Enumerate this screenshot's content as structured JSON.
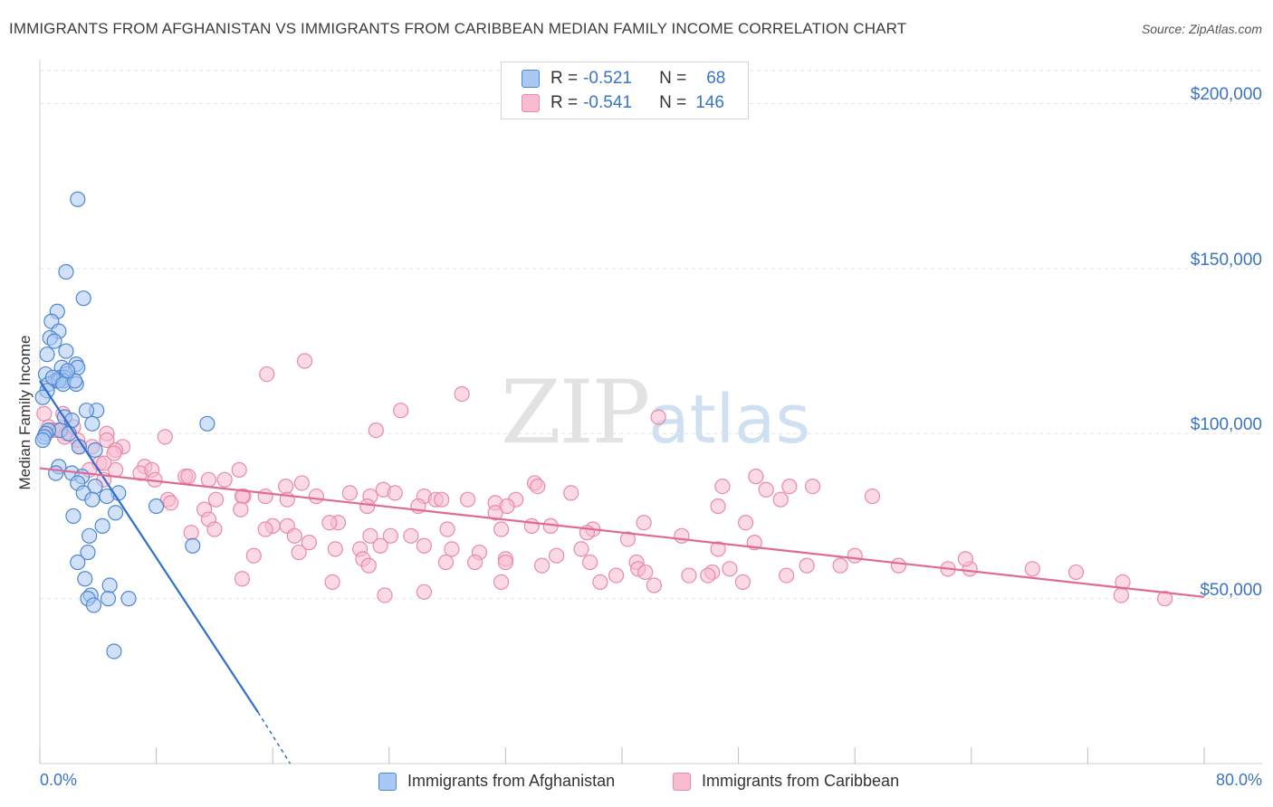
{
  "chart_data": {
    "type": "scatter",
    "title": "IMMIGRANTS FROM AFGHANISTAN VS IMMIGRANTS FROM CARIBBEAN MEDIAN FAMILY INCOME CORRELATION CHART",
    "source": "Source: ZipAtlas.com",
    "ylabel": "Median Family Income",
    "xlabel": "",
    "xlim": [
      0,
      80
    ],
    "ylim": [
      0,
      210000
    ],
    "x_tick_labels": {
      "left": "0.0%",
      "right": "80.0%"
    },
    "y_ticks": [
      {
        "value": 50000,
        "label": "$50,000"
      },
      {
        "value": 100000,
        "label": "$100,000"
      },
      {
        "value": 150000,
        "label": "$150,000"
      },
      {
        "value": 200000,
        "label": "$200,000"
      }
    ],
    "grid": true,
    "watermark": {
      "zip": "ZIP",
      "atlas": "atlas"
    },
    "colors": {
      "afghanistan_fill": "#aac9f2",
      "afghanistan_stroke": "#4f86d1",
      "afghanistan_line": "#3070cc",
      "caribbean_fill": "#f7bcd0",
      "caribbean_stroke": "#e88aa8",
      "caribbean_line": "#e06a92",
      "tick_text": "#3b74c4"
    },
    "stats": [
      {
        "r_label": "R = ",
        "r_value": "-0.521",
        "n_label": "N = ",
        "n_value": "68"
      },
      {
        "r_label": "R = ",
        "r_value": "-0.541",
        "n_label": "N = ",
        "n_value": "146"
      }
    ],
    "series": [
      {
        "name": "Immigrants from Afghanistan",
        "trend": {
          "x0": 0.0,
          "y0": 116000,
          "x1": 15.0,
          "y1": 15500,
          "dash_to_x": 17.2,
          "dash_to_y": 0
        },
        "points": [
          [
            2.6,
            171000
          ],
          [
            1.8,
            149000
          ],
          [
            3.0,
            141000
          ],
          [
            1.2,
            137000
          ],
          [
            0.8,
            134000
          ],
          [
            1.3,
            131000
          ],
          [
            0.7,
            129000
          ],
          [
            1.0,
            128000
          ],
          [
            0.5,
            124000
          ],
          [
            1.8,
            125000
          ],
          [
            2.5,
            121000
          ],
          [
            1.5,
            120000
          ],
          [
            1.8,
            118000
          ],
          [
            0.4,
            118000
          ],
          [
            2.6,
            120000
          ],
          [
            1.4,
            117000
          ],
          [
            1.7,
            117000
          ],
          [
            1.1,
            116000
          ],
          [
            0.6,
            115000
          ],
          [
            2.5,
            115000
          ],
          [
            1.6,
            116000
          ],
          [
            1.3,
            116000
          ],
          [
            0.9,
            117000
          ],
          [
            1.6,
            115000
          ],
          [
            0.5,
            113000
          ],
          [
            0.2,
            111000
          ],
          [
            3.9,
            107000
          ],
          [
            1.7,
            105000
          ],
          [
            2.2,
            104000
          ],
          [
            3.6,
            103000
          ],
          [
            11.5,
            103000
          ],
          [
            1.4,
            101000
          ],
          [
            0.6,
            101000
          ],
          [
            0.4,
            100000
          ],
          [
            2.0,
            100000
          ],
          [
            0.3,
            99000
          ],
          [
            0.2,
            98000
          ],
          [
            2.7,
            96000
          ],
          [
            3.8,
            95000
          ],
          [
            1.3,
            90000
          ],
          [
            1.1,
            88000
          ],
          [
            2.2,
            88000
          ],
          [
            2.9,
            87000
          ],
          [
            2.6,
            85000
          ],
          [
            3.8,
            84000
          ],
          [
            5.4,
            82000
          ],
          [
            3.0,
            82000
          ],
          [
            4.6,
            81000
          ],
          [
            3.6,
            80000
          ],
          [
            8.0,
            78000
          ],
          [
            5.2,
            76000
          ],
          [
            2.3,
            75000
          ],
          [
            4.3,
            72000
          ],
          [
            3.4,
            69000
          ],
          [
            10.5,
            66000
          ],
          [
            3.3,
            64000
          ],
          [
            2.6,
            61000
          ],
          [
            3.1,
            56000
          ],
          [
            4.8,
            54000
          ],
          [
            3.5,
            51000
          ],
          [
            3.3,
            50000
          ],
          [
            4.7,
            50000
          ],
          [
            6.1,
            50000
          ],
          [
            3.7,
            48000
          ],
          [
            5.1,
            34000
          ],
          [
            2.4,
            116000
          ],
          [
            1.9,
            119000
          ],
          [
            3.2,
            107000
          ]
        ]
      },
      {
        "name": "Immigrants from Caribbean",
        "trend": {
          "x0": 0.0,
          "y0": 89500,
          "x1": 80.0,
          "y1": 50500
        },
        "points": [
          [
            18.2,
            122000
          ],
          [
            15.6,
            118000
          ],
          [
            29.0,
            112000
          ],
          [
            24.8,
            107000
          ],
          [
            42.5,
            105000
          ],
          [
            23.1,
            101000
          ],
          [
            8.6,
            99000
          ],
          [
            4.6,
            100000
          ],
          [
            1.8,
            100000
          ],
          [
            2.3,
            102000
          ],
          [
            0.3,
            106000
          ],
          [
            1.6,
            106000
          ],
          [
            0.6,
            102000
          ],
          [
            0.9,
            101000
          ],
          [
            1.7,
            99000
          ],
          [
            1.2,
            101000
          ],
          [
            2.6,
            98000
          ],
          [
            4.6,
            98000
          ],
          [
            5.7,
            96000
          ],
          [
            5.2,
            95000
          ],
          [
            3.6,
            96000
          ],
          [
            2.7,
            96000
          ],
          [
            5.1,
            94000
          ],
          [
            7.2,
            90000
          ],
          [
            4.1,
            91000
          ],
          [
            5.2,
            89000
          ],
          [
            6.9,
            88000
          ],
          [
            3.4,
            89000
          ],
          [
            7.7,
            89000
          ],
          [
            4.4,
            91000
          ],
          [
            13.7,
            89000
          ],
          [
            10.0,
            87000
          ],
          [
            7.9,
            86000
          ],
          [
            10.2,
            87000
          ],
          [
            12.7,
            86000
          ],
          [
            11.6,
            86000
          ],
          [
            4.4,
            86000
          ],
          [
            18.0,
            85000
          ],
          [
            16.9,
            84000
          ],
          [
            23.6,
            83000
          ],
          [
            34.0,
            85000
          ],
          [
            46.9,
            84000
          ],
          [
            51.5,
            84000
          ],
          [
            49.2,
            87000
          ],
          [
            53.1,
            84000
          ],
          [
            57.2,
            81000
          ],
          [
            49.9,
            83000
          ],
          [
            50.9,
            80000
          ],
          [
            24.4,
            82000
          ],
          [
            21.3,
            82000
          ],
          [
            19.0,
            81000
          ],
          [
            22.7,
            81000
          ],
          [
            26.4,
            81000
          ],
          [
            27.2,
            80000
          ],
          [
            27.6,
            80000
          ],
          [
            29.4,
            80000
          ],
          [
            32.7,
            80000
          ],
          [
            31.3,
            79000
          ],
          [
            14.0,
            81000
          ],
          [
            15.5,
            81000
          ],
          [
            8.8,
            80000
          ],
          [
            9.0,
            79000
          ],
          [
            12.1,
            80000
          ],
          [
            13.9,
            81000
          ],
          [
            17.0,
            80000
          ],
          [
            13.8,
            77000
          ],
          [
            11.3,
            77000
          ],
          [
            11.6,
            74000
          ],
          [
            17.0,
            72000
          ],
          [
            20.5,
            73000
          ],
          [
            26.0,
            78000
          ],
          [
            22.5,
            78000
          ],
          [
            32.1,
            78000
          ],
          [
            31.3,
            76000
          ],
          [
            34.2,
            84000
          ],
          [
            36.5,
            82000
          ],
          [
            46.6,
            78000
          ],
          [
            41.5,
            73000
          ],
          [
            48.5,
            73000
          ],
          [
            44.1,
            69000
          ],
          [
            49.1,
            67000
          ],
          [
            40.4,
            68000
          ],
          [
            38.0,
            71000
          ],
          [
            37.6,
            70000
          ],
          [
            35.1,
            72000
          ],
          [
            33.8,
            72000
          ],
          [
            31.7,
            71000
          ],
          [
            28.0,
            71000
          ],
          [
            25.5,
            69000
          ],
          [
            24.1,
            69000
          ],
          [
            22.7,
            69000
          ],
          [
            19.9,
            73000
          ],
          [
            17.5,
            69000
          ],
          [
            16.0,
            72000
          ],
          [
            15.5,
            71000
          ],
          [
            10.4,
            70000
          ],
          [
            12.0,
            71000
          ],
          [
            18.5,
            67000
          ],
          [
            22.0,
            65000
          ],
          [
            23.4,
            66000
          ],
          [
            26.4,
            66000
          ],
          [
            28.3,
            65000
          ],
          [
            30.2,
            64000
          ],
          [
            32.0,
            62000
          ],
          [
            35.5,
            63000
          ],
          [
            37.2,
            65000
          ],
          [
            41.0,
            61000
          ],
          [
            46.6,
            65000
          ],
          [
            52.7,
            60000
          ],
          [
            56.0,
            63000
          ],
          [
            20.3,
            65000
          ],
          [
            17.8,
            64000
          ],
          [
            14.7,
            63000
          ],
          [
            22.2,
            62000
          ],
          [
            22.6,
            60000
          ],
          [
            27.9,
            61000
          ],
          [
            29.9,
            61000
          ],
          [
            32.0,
            61000
          ],
          [
            34.5,
            60000
          ],
          [
            37.8,
            61000
          ],
          [
            55.0,
            60000
          ],
          [
            59.0,
            60000
          ],
          [
            41.1,
            59000
          ],
          [
            46.2,
            58000
          ],
          [
            39.6,
            57000
          ],
          [
            41.6,
            58000
          ],
          [
            45.9,
            57000
          ],
          [
            51.3,
            57000
          ],
          [
            62.4,
            59000
          ],
          [
            63.9,
            59000
          ],
          [
            68.2,
            59000
          ],
          [
            63.6,
            62000
          ],
          [
            71.2,
            58000
          ],
          [
            74.4,
            55000
          ],
          [
            31.7,
            55000
          ],
          [
            38.5,
            55000
          ],
          [
            42.2,
            54000
          ],
          [
            13.9,
            56000
          ],
          [
            20.1,
            55000
          ],
          [
            23.7,
            51000
          ],
          [
            26.4,
            52000
          ],
          [
            44.6,
            57000
          ],
          [
            47.4,
            59000
          ],
          [
            48.3,
            55000
          ],
          [
            74.3,
            51000
          ],
          [
            77.3,
            50000
          ]
        ]
      }
    ]
  }
}
